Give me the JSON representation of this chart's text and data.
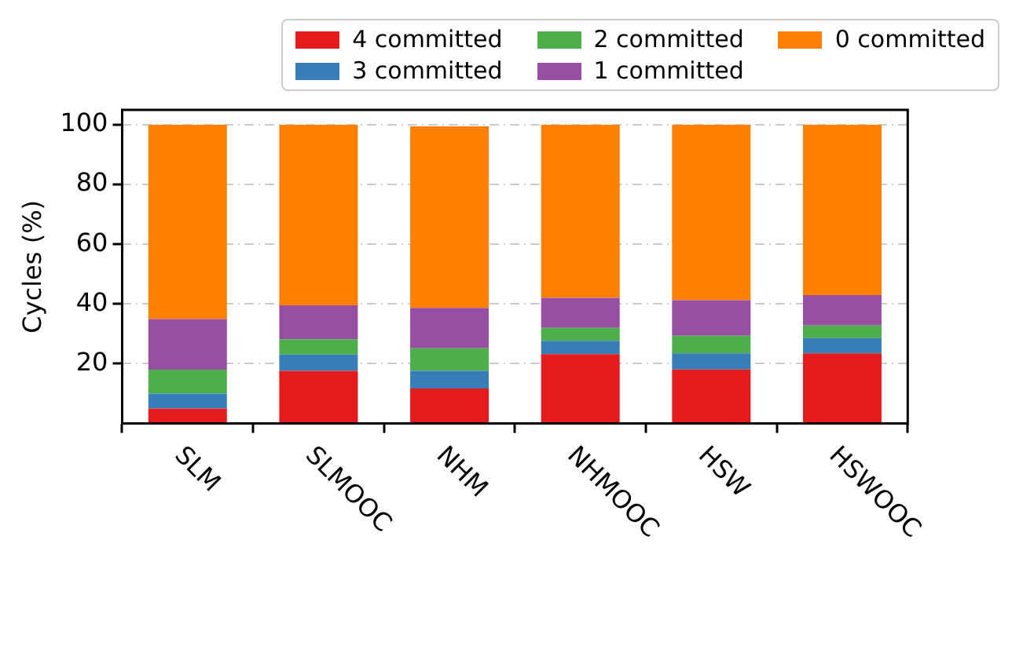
{
  "chart_data": {
    "type": "bar",
    "stacked": true,
    "ylabel": "Cycles (%)",
    "categories": [
      "SLM",
      "SLMOOC",
      "NHM",
      "NHMOOC",
      "HSW",
      "HSWOOC"
    ],
    "series": [
      {
        "name": "4 committed",
        "color": "#e41a1c",
        "values": [
          5,
          17.6,
          11.7,
          23.2,
          18.1,
          23.5
        ]
      },
      {
        "name": "3 committed",
        "color": "#377eb8",
        "values": [
          5,
          5.5,
          5.9,
          4.5,
          5.4,
          5.1
        ]
      },
      {
        "name": "2 committed",
        "color": "#4daf4a",
        "values": [
          8,
          5.1,
          7.6,
          4.3,
          5.9,
          4.2
        ]
      },
      {
        "name": "1 committed",
        "color": "#984ea3",
        "values": [
          17,
          11.4,
          13.5,
          10.1,
          11.9,
          10.2
        ]
      },
      {
        "name": "0 committed",
        "color": "#ff7f00",
        "values": [
          65,
          60.4,
          60.8,
          57.9,
          58.7,
          57
        ]
      }
    ],
    "ylim": [
      0,
      105
    ],
    "yticks": [
      20,
      40,
      60,
      80,
      100
    ],
    "grid": "y",
    "legend": "top"
  }
}
